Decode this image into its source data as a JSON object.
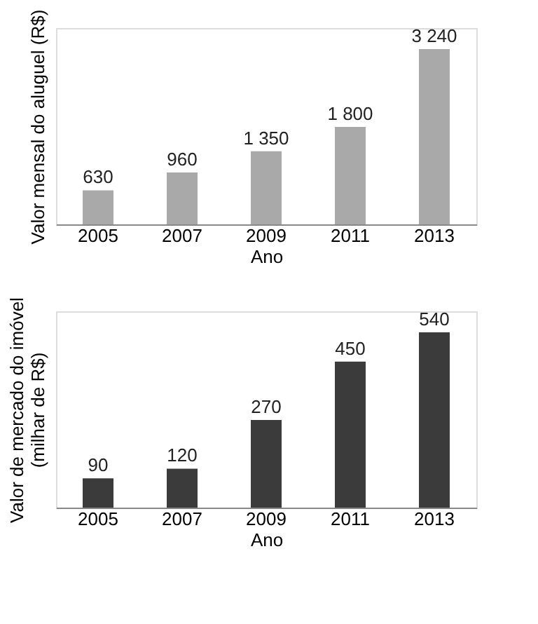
{
  "chart_data": [
    {
      "type": "bar",
      "categories": [
        "2005",
        "2007",
        "2009",
        "2011",
        "2013"
      ],
      "xlabel": "Ano",
      "ylabel": "Valor mensal do aluguel (R$)",
      "series": [
        {
          "color": "#a9a9a9",
          "values": [
            630,
            960,
            1350,
            1800,
            3240
          ],
          "value_labels": [
            "630",
            "960",
            "1 350",
            "1 800",
            "3 240"
          ]
        }
      ],
      "tick_labels": "x",
      "grid": false
    },
    {
      "type": "bar",
      "categories": [
        "2005",
        "2007",
        "2009",
        "2011",
        "2013"
      ],
      "xlabel": "Ano",
      "ylabel": "Valor de mercado do imóvel\n(milhar de R$)",
      "series": [
        {
          "color": "#3b3b3b",
          "values": [
            90,
            120,
            270,
            450,
            540
          ]
        }
      ],
      "data_labels": true,
      "tick_labels": "x",
      "grid": false
    }
  ]
}
